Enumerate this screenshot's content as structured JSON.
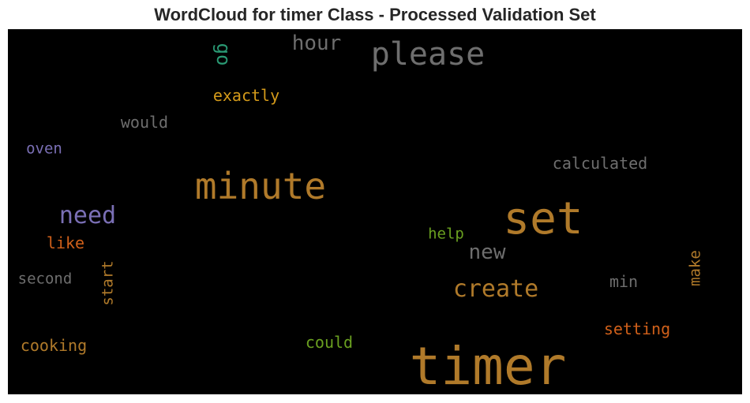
{
  "title": "WordCloud for timer Class - Processed Validation Set",
  "words": [
    {
      "text": "timer",
      "color": "#b07a2a"
    },
    {
      "text": "set",
      "color": "#b07a2a"
    },
    {
      "text": "minute",
      "color": "#b07a2a"
    },
    {
      "text": "please",
      "color": "#6e6e6e"
    },
    {
      "text": "need",
      "color": "#7a6fb5"
    },
    {
      "text": "create",
      "color": "#b07a2a"
    },
    {
      "text": "hour",
      "color": "#6e6e6e"
    },
    {
      "text": "new",
      "color": "#6e6e6e"
    },
    {
      "text": "exactly",
      "color": "#d49a1a"
    },
    {
      "text": "go",
      "color": "#2a9a74"
    },
    {
      "text": "calculated",
      "color": "#6e6e6e"
    },
    {
      "text": "would",
      "color": "#6e6e6e"
    },
    {
      "text": "oven",
      "color": "#7a6fb5"
    },
    {
      "text": "help",
      "color": "#6aa020"
    },
    {
      "text": "like",
      "color": "#d0601a"
    },
    {
      "text": "second",
      "color": "#6e6e6e"
    },
    {
      "text": "start",
      "color": "#b07a2a"
    },
    {
      "text": "min",
      "color": "#6e6e6e"
    },
    {
      "text": "make",
      "color": "#b07a2a"
    },
    {
      "text": "setting",
      "color": "#d0601a"
    },
    {
      "text": "could",
      "color": "#6aa020"
    },
    {
      "text": "cooking",
      "color": "#b07a2a"
    }
  ]
}
